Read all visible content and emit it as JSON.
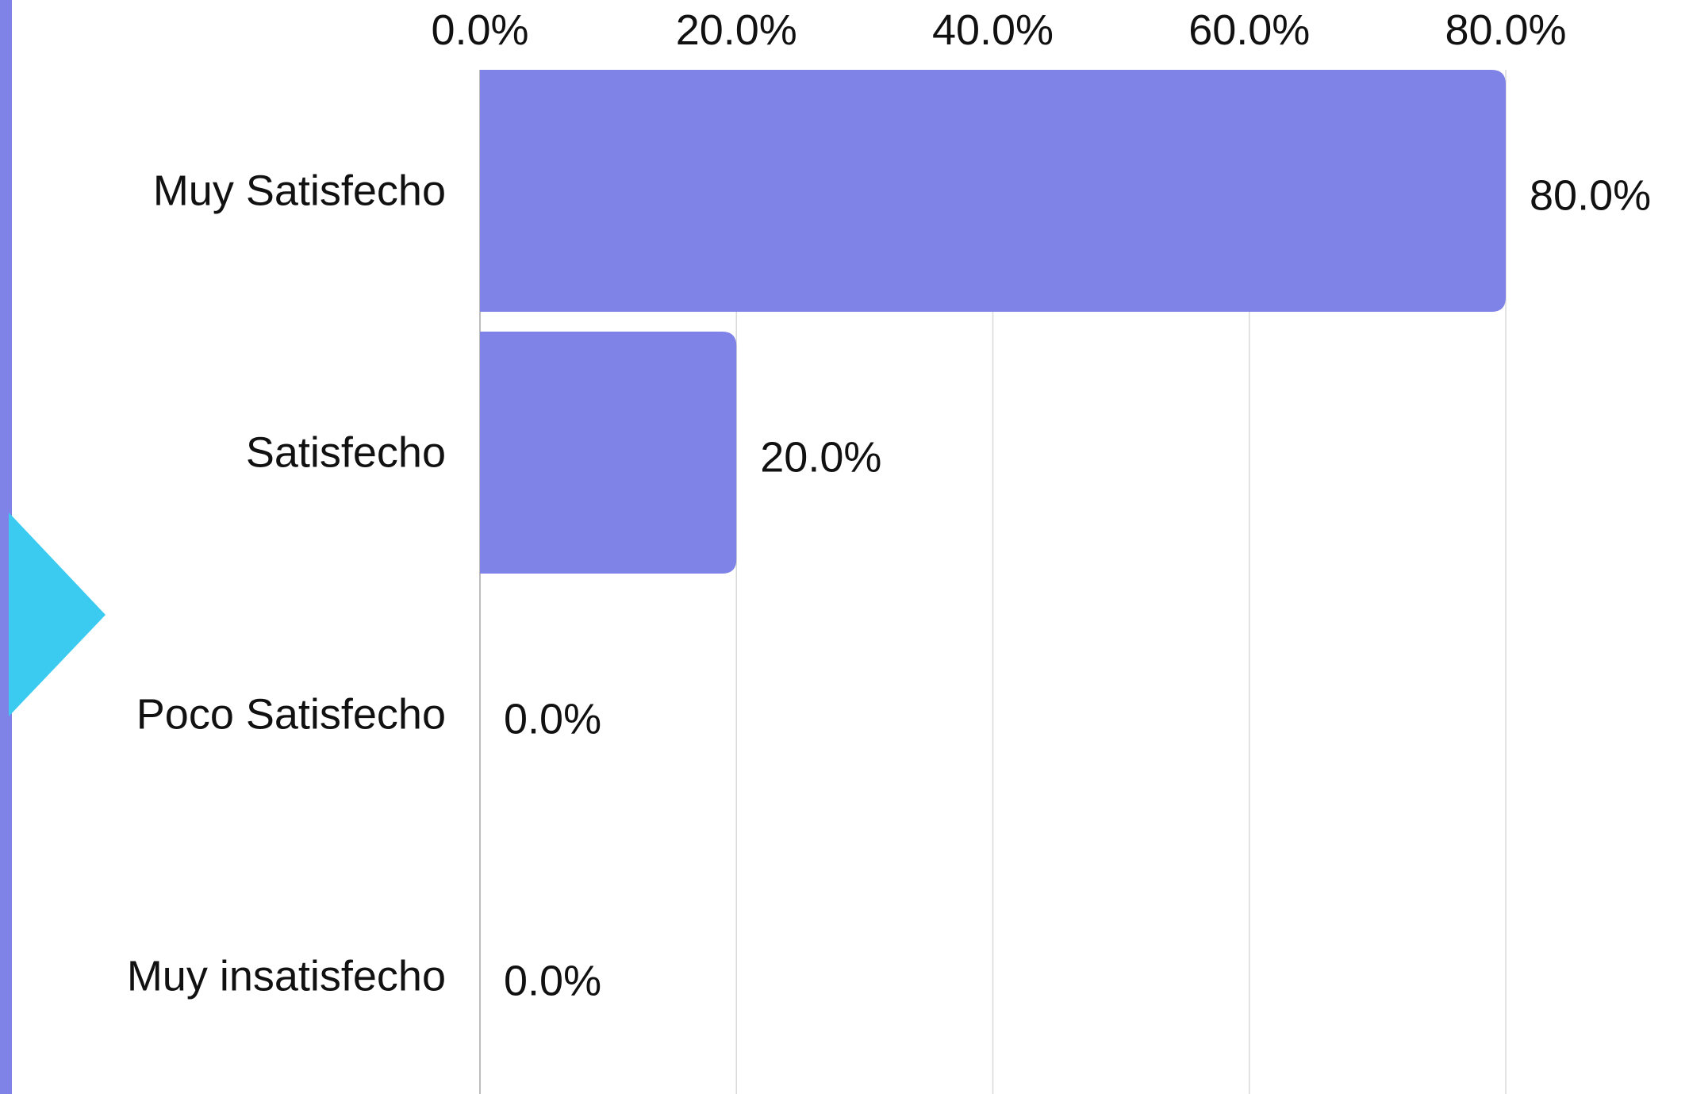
{
  "chart_data": {
    "type": "bar",
    "orientation": "horizontal",
    "categories": [
      "Muy Satisfecho",
      "Satisfecho",
      "Poco Satisfecho",
      "Muy insatisfecho"
    ],
    "values": [
      80.0,
      20.0,
      0.0,
      0.0
    ],
    "value_labels": [
      "80.0%",
      "20.0%",
      "0.0%",
      "0.0%"
    ],
    "x_ticks": [
      0,
      20,
      40,
      60,
      80
    ],
    "x_tick_labels": [
      "0.0%",
      "20.0%",
      "40.0%",
      "60.0%",
      "80.0%"
    ],
    "xlim": [
      0,
      80
    ],
    "axis_position": "top",
    "grid": true,
    "legend": "none",
    "title": "",
    "xlabel": "",
    "ylabel": ""
  },
  "colors": {
    "bar": "#7f82e6",
    "left_stripe": "#7f82e6",
    "arrow": "#3ccbf0",
    "grid": "#d9d9d9",
    "axis": "#bdbdbd",
    "text": "#111111"
  },
  "decorations": {
    "left_marker": "arrow-right-icon"
  }
}
